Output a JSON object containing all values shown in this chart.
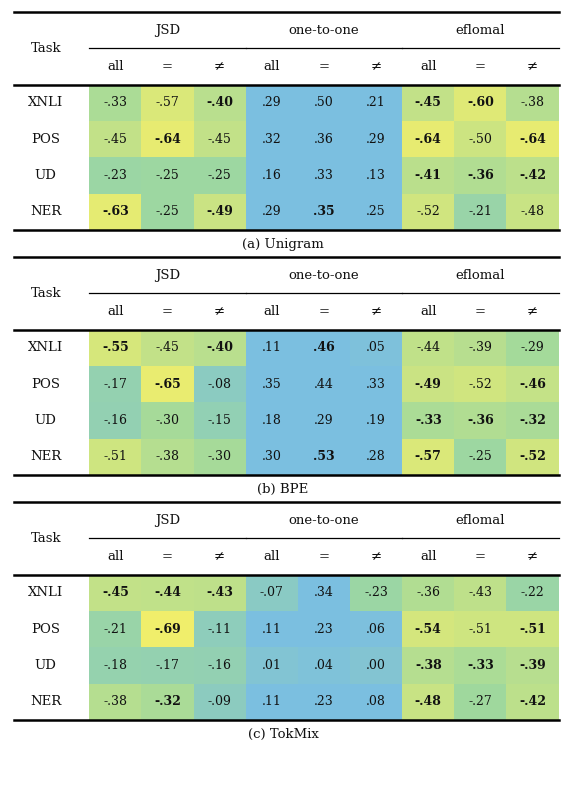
{
  "tables": [
    {
      "caption": "(a) Unigram",
      "rows": [
        "XNLI",
        "POS",
        "UD",
        "NER"
      ],
      "values": [
        [
          -0.33,
          -0.57,
          -0.4,
          0.29,
          0.5,
          0.21,
          -0.45,
          -0.6,
          -0.38
        ],
        [
          -0.45,
          -0.64,
          -0.45,
          0.32,
          0.36,
          0.29,
          -0.64,
          -0.5,
          -0.64
        ],
        [
          -0.23,
          -0.25,
          -0.25,
          0.16,
          0.33,
          0.13,
          -0.41,
          -0.36,
          -0.42
        ],
        [
          -0.63,
          -0.25,
          -0.49,
          0.29,
          0.35,
          0.25,
          -0.52,
          -0.21,
          -0.48
        ]
      ],
      "bold": [
        [
          false,
          false,
          true,
          false,
          false,
          false,
          true,
          true,
          false
        ],
        [
          false,
          true,
          false,
          false,
          false,
          false,
          true,
          false,
          true
        ],
        [
          false,
          false,
          false,
          false,
          false,
          false,
          true,
          true,
          true
        ],
        [
          true,
          false,
          true,
          false,
          true,
          false,
          false,
          false,
          false
        ]
      ]
    },
    {
      "caption": "(b) BPE",
      "rows": [
        "XNLI",
        "POS",
        "UD",
        "NER"
      ],
      "values": [
        [
          -0.55,
          -0.45,
          -0.4,
          0.11,
          0.46,
          0.05,
          -0.44,
          -0.39,
          -0.29
        ],
        [
          -0.17,
          -0.65,
          -0.08,
          0.35,
          0.44,
          0.33,
          -0.49,
          -0.52,
          -0.46
        ],
        [
          -0.16,
          -0.3,
          -0.15,
          0.18,
          0.29,
          0.19,
          -0.33,
          -0.36,
          -0.32
        ],
        [
          -0.51,
          -0.38,
          -0.3,
          0.3,
          0.53,
          0.28,
          -0.57,
          -0.25,
          -0.52
        ]
      ],
      "bold": [
        [
          true,
          false,
          true,
          false,
          true,
          false,
          false,
          false,
          false
        ],
        [
          false,
          true,
          false,
          false,
          false,
          false,
          true,
          false,
          true
        ],
        [
          false,
          false,
          false,
          false,
          false,
          false,
          true,
          true,
          true
        ],
        [
          false,
          false,
          false,
          false,
          true,
          false,
          true,
          false,
          true
        ]
      ]
    },
    {
      "caption": "(c) TokMix",
      "rows": [
        "XNLI",
        "POS",
        "UD",
        "NER"
      ],
      "values": [
        [
          -0.45,
          -0.44,
          -0.43,
          -0.07,
          0.34,
          -0.23,
          -0.36,
          -0.43,
          -0.22
        ],
        [
          -0.21,
          -0.69,
          -0.11,
          0.11,
          0.23,
          0.06,
          -0.54,
          -0.51,
          -0.51
        ],
        [
          -0.18,
          -0.17,
          -0.16,
          0.01,
          0.04,
          -0.0,
          -0.38,
          -0.33,
          -0.39
        ],
        [
          -0.38,
          -0.32,
          -0.09,
          0.11,
          0.23,
          0.08,
          -0.48,
          -0.27,
          -0.42
        ]
      ],
      "bold": [
        [
          true,
          true,
          true,
          false,
          false,
          false,
          false,
          false,
          false
        ],
        [
          false,
          true,
          false,
          false,
          false,
          false,
          true,
          false,
          true
        ],
        [
          false,
          false,
          false,
          false,
          false,
          false,
          true,
          true,
          true
        ],
        [
          false,
          true,
          false,
          false,
          false,
          false,
          true,
          false,
          true
        ]
      ]
    }
  ],
  "group_labels": [
    "JSD",
    "one-to-one",
    "eflomal"
  ],
  "col_labels": [
    "all",
    "=",
    "≠",
    "all",
    "=",
    "≠",
    "all",
    "=",
    "≠"
  ],
  "bg_color": "#ffffff",
  "text_color": "#111111",
  "header_fontsize": 9.5,
  "cell_fontsize": 9.0,
  "row_label_fontsize": 9.5,
  "caption_fontsize": 9.5,
  "vmin": -0.7,
  "vmax": 0.55
}
